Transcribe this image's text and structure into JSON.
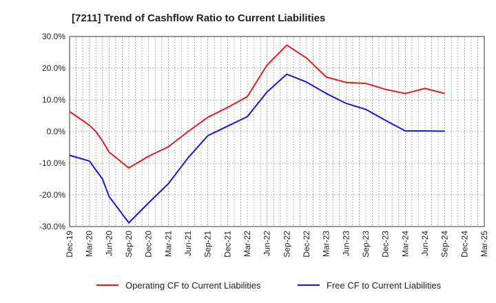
{
  "chart_data": {
    "type": "line",
    "title": "[7211]  Trend of Cashflow Ratio to Current Liabilities",
    "xlabel": "",
    "ylabel": "",
    "ylim": [
      -30,
      30
    ],
    "yticks": [
      "30.0%",
      "20.0%",
      "10.0%",
      "0.0%",
      "-10.0%",
      "-20.0%",
      "-30.0%"
    ],
    "ytick_values": [
      30,
      20,
      10,
      0,
      -10,
      -20,
      -30
    ],
    "categories": [
      "Dec-19",
      "Mar-20",
      "Jun-20",
      "Sep-20",
      "Dec-20",
      "Mar-21",
      "Jun-21",
      "Sep-21",
      "Dec-21",
      "Mar-22",
      "Jun-22",
      "Sep-22",
      "Dec-22",
      "Mar-23",
      "Jun-23",
      "Sep-23",
      "Dec-23",
      "Mar-24",
      "Jun-24",
      "Sep-24",
      "Dec-24",
      "Mar-25"
    ],
    "x": [
      "Dec-19",
      "Jan-20",
      "Feb-20",
      "Mar-20",
      "Apr-20",
      "May-20",
      "Jun-20",
      "Jul-20",
      "Aug-20",
      "Sep-20",
      "Oct-20",
      "Nov-20",
      "Dec-20",
      "Jan-21",
      "Feb-21",
      "Mar-21",
      "Apr-21",
      "May-21",
      "Jun-21",
      "Jul-21",
      "Aug-21",
      "Sep-21",
      "Oct-21",
      "Nov-21",
      "Dec-21",
      "Jan-22",
      "Feb-22",
      "Mar-22",
      "Apr-22",
      "May-22",
      "Jun-22",
      "Jul-22",
      "Aug-22",
      "Sep-22",
      "Oct-22",
      "Nov-22",
      "Dec-22",
      "Jan-23",
      "Feb-23",
      "Mar-23",
      "Apr-23",
      "May-23",
      "Jun-23",
      "Jul-23",
      "Aug-23",
      "Sep-23",
      "Oct-23",
      "Nov-23",
      "Dec-23",
      "Jan-24",
      "Feb-24",
      "Mar-24",
      "Apr-24",
      "May-24",
      "Jun-24",
      "Jul-24",
      "Aug-24",
      "Sep-24",
      "Oct-24",
      "Nov-24",
      "Dec-24",
      "Jan-25",
      "Feb-25",
      "Mar-25"
    ],
    "grid": true,
    "legend": "bottom",
    "series": [
      {
        "name": "Operating CF to Current Liabilities",
        "color": "#e41a1c",
        "values": [
          6.3,
          null,
          null,
          2.0,
          0.0,
          -3.0,
          -6.5,
          null,
          null,
          -11.5,
          null,
          null,
          -7.8,
          null,
          null,
          -4.8,
          null,
          null,
          0.0,
          null,
          null,
          4.5,
          null,
          null,
          7.6,
          null,
          null,
          11.0,
          null,
          null,
          21.0,
          null,
          null,
          27.3,
          null,
          null,
          23.2,
          null,
          null,
          17.2,
          null,
          null,
          15.5,
          null,
          null,
          15.2,
          null,
          null,
          13.3,
          null,
          null,
          12.0,
          null,
          null,
          13.6,
          null,
          null,
          12.0,
          null,
          null,
          null,
          null,
          null,
          null
        ]
      },
      {
        "name": "Free CF to Current Liabilities",
        "color": "#1515e0",
        "values": [
          -7.5,
          null,
          null,
          -9.3,
          null,
          -15.0,
          -20.5,
          null,
          null,
          -28.8,
          null,
          null,
          -22.5,
          null,
          null,
          -16.5,
          null,
          null,
          -8.3,
          null,
          null,
          -1.3,
          null,
          null,
          1.7,
          null,
          null,
          4.7,
          null,
          null,
          12.5,
          null,
          null,
          18.1,
          null,
          null,
          15.6,
          null,
          null,
          12.0,
          null,
          null,
          8.9,
          null,
          null,
          7.0,
          null,
          null,
          3.5,
          null,
          null,
          0.2,
          null,
          null,
          0.2,
          null,
          null,
          0.1,
          null,
          null,
          null,
          null,
          null,
          null
        ]
      }
    ]
  }
}
